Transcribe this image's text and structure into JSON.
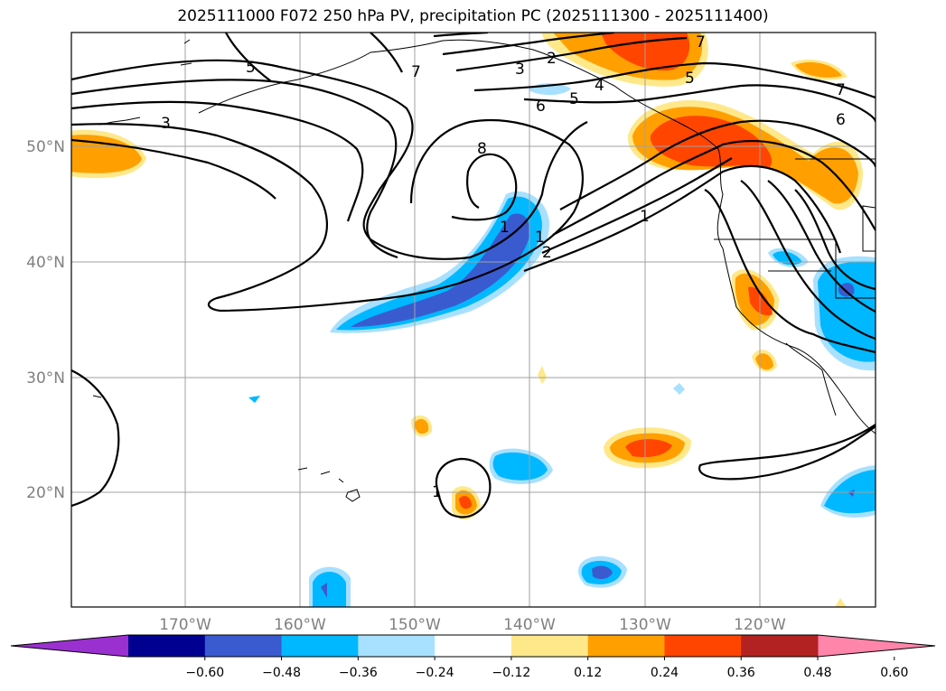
{
  "title": "2025111000 F072 250 hPa PV, precipitation PC (2025111300 - 2025111400)",
  "map": {
    "lat_labels": [
      "50°N",
      "40°N",
      "30°N",
      "20°N"
    ],
    "lon_labels": [
      "170°W",
      "160°W",
      "150°W",
      "140°W",
      "130°W",
      "120°W"
    ]
  },
  "colorbar": {
    "ticks": [
      "−0.60",
      "−0.48",
      "−0.36",
      "−0.24",
      "−0.12",
      "0.12",
      "0.24",
      "0.36",
      "0.48",
      "0.60"
    ],
    "colors": [
      "#9b30d0",
      "#000090",
      "#3a5bd0",
      "#00b8ff",
      "#a8e0ff",
      "#ffffff",
      "#ffe88a",
      "#ffa000",
      "#ff4500",
      "#b22222",
      "#ff85aa"
    ]
  },
  "contour_labels": [
    "5",
    "3",
    "2",
    "7",
    "6",
    "5",
    "4",
    "8",
    "1",
    "1",
    "2",
    "1",
    "3",
    "6",
    "7",
    "5",
    "1",
    "7"
  ],
  "colors": {
    "neg_light": "#a8e0ff",
    "neg_mid": "#00b8ff",
    "neg_strong": "#3a5bd0",
    "pos_light": "#ffe88a",
    "pos_mid": "#ffa000",
    "pos_strong": "#ff4500"
  }
}
